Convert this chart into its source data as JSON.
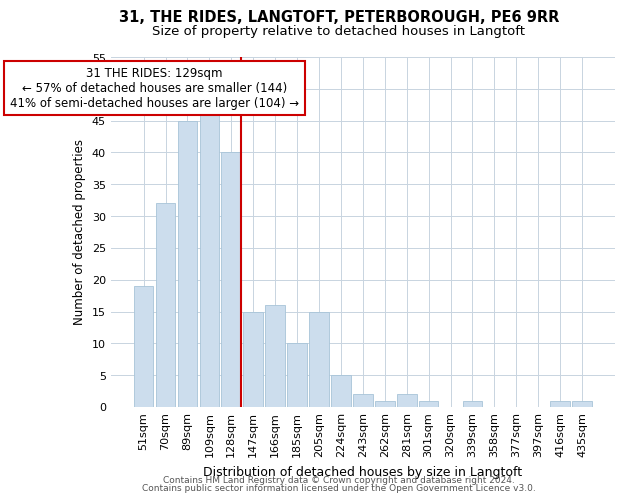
{
  "title1": "31, THE RIDES, LANGTOFT, PETERBOROUGH, PE6 9RR",
  "title2": "Size of property relative to detached houses in Langtoft",
  "xlabel": "Distribution of detached houses by size in Langtoft",
  "ylabel": "Number of detached properties",
  "categories": [
    "51sqm",
    "70sqm",
    "89sqm",
    "109sqm",
    "128sqm",
    "147sqm",
    "166sqm",
    "185sqm",
    "205sqm",
    "224sqm",
    "243sqm",
    "262sqm",
    "281sqm",
    "301sqm",
    "320sqm",
    "339sqm",
    "358sqm",
    "377sqm",
    "397sqm",
    "416sqm",
    "435sqm"
  ],
  "bar_heights": [
    19,
    32,
    45,
    46,
    40,
    15,
    16,
    10,
    15,
    5,
    2,
    1,
    2,
    1,
    0,
    1,
    0,
    0,
    0,
    1,
    1
  ],
  "bar_color": "#ccdded",
  "bar_edge_color": "#a8c4d8",
  "vline_color": "#cc0000",
  "annotation_text": "31 THE RIDES: 129sqm\n← 57% of detached houses are smaller (144)\n41% of semi-detached houses are larger (104) →",
  "annotation_box_color": "#ffffff",
  "annotation_box_edge": "#cc0000",
  "ylim": [
    0,
    55
  ],
  "yticks": [
    0,
    5,
    10,
    15,
    20,
    25,
    30,
    35,
    40,
    45,
    50,
    55
  ],
  "footer1": "Contains HM Land Registry data © Crown copyright and database right 2024.",
  "footer2": "Contains public sector information licensed under the Open Government Licence v3.0.",
  "bg_color": "#ffffff",
  "grid_color": "#c8d4e0",
  "title1_fontsize": 10.5,
  "title2_fontsize": 9.5,
  "xlabel_fontsize": 9,
  "ylabel_fontsize": 8.5,
  "tick_fontsize": 8,
  "annotation_fontsize": 8.5,
  "footer_fontsize": 6.5
}
